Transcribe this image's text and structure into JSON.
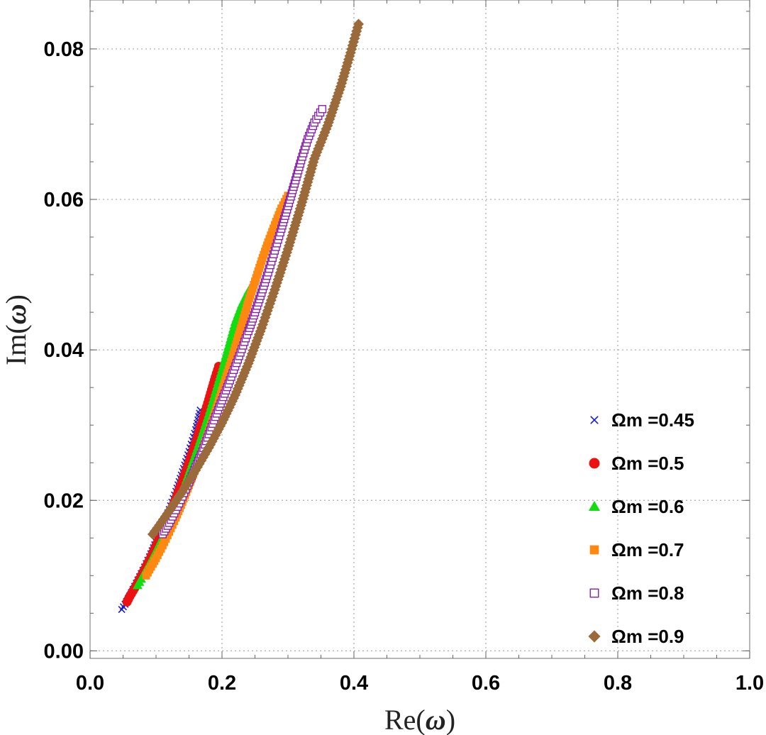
{
  "chart_data": {
    "type": "scatter",
    "title": "",
    "xlabel_prefix": "Re(",
    "xlabel_symbol": "ω",
    "xlabel_suffix": ")",
    "ylabel_prefix": "Im(",
    "ylabel_symbol": "ω",
    "ylabel_suffix": ")",
    "xlim": [
      0.0,
      1.0
    ],
    "ylim": [
      -0.001,
      0.0865
    ],
    "xticks": [
      0.0,
      0.2,
      0.4,
      0.6,
      0.8,
      1.0
    ],
    "xtick_labels": [
      "0.0",
      "0.2",
      "0.4",
      "0.6",
      "0.8",
      "1.0"
    ],
    "yticks": [
      0.0,
      0.02,
      0.04,
      0.06,
      0.08
    ],
    "ytick_labels": [
      "0.00",
      "0.02",
      "0.04",
      "0.06",
      "0.08"
    ],
    "grid": true,
    "legend_position": "bottom-right",
    "series": [
      {
        "name": "Ωm =0.45",
        "marker": "x",
        "color": "#1a1acc",
        "points": [
          [
            0.048,
            0.0055
          ],
          [
            0.053,
            0.0062
          ],
          [
            0.06,
            0.0073
          ],
          [
            0.07,
            0.009
          ],
          [
            0.08,
            0.0107
          ],
          [
            0.09,
            0.0125
          ],
          [
            0.1,
            0.0145
          ],
          [
            0.11,
            0.0166
          ],
          [
            0.12,
            0.0188
          ],
          [
            0.13,
            0.0212
          ],
          [
            0.14,
            0.0238
          ],
          [
            0.15,
            0.0265
          ],
          [
            0.16,
            0.0294
          ],
          [
            0.167,
            0.032
          ]
        ]
      },
      {
        "name": "Ωm =0.5",
        "marker": "circle",
        "color": "#ee1111",
        "points": [
          [
            0.056,
            0.0065
          ],
          [
            0.06,
            0.0072
          ],
          [
            0.07,
            0.0087
          ],
          [
            0.08,
            0.0104
          ],
          [
            0.09,
            0.0121
          ],
          [
            0.1,
            0.014
          ],
          [
            0.11,
            0.016
          ],
          [
            0.12,
            0.0181
          ],
          [
            0.13,
            0.0203
          ],
          [
            0.14,
            0.0226
          ],
          [
            0.15,
            0.0251
          ],
          [
            0.16,
            0.0277
          ],
          [
            0.17,
            0.0305
          ],
          [
            0.18,
            0.0334
          ],
          [
            0.19,
            0.0364
          ],
          [
            0.195,
            0.0378
          ]
        ]
      },
      {
        "name": "Ωm =0.6",
        "marker": "triangle",
        "color": "#11dd11",
        "points": [
          [
            0.072,
            0.0087
          ],
          [
            0.08,
            0.01
          ],
          [
            0.09,
            0.0116
          ],
          [
            0.1,
            0.0133
          ],
          [
            0.11,
            0.0151
          ],
          [
            0.12,
            0.017
          ],
          [
            0.13,
            0.0191
          ],
          [
            0.14,
            0.0213
          ],
          [
            0.15,
            0.0237
          ],
          [
            0.16,
            0.0262
          ],
          [
            0.17,
            0.0288
          ],
          [
            0.18,
            0.0315
          ],
          [
            0.19,
            0.0344
          ],
          [
            0.2,
            0.0374
          ],
          [
            0.21,
            0.0405
          ],
          [
            0.22,
            0.0437
          ],
          [
            0.23,
            0.046
          ],
          [
            0.24,
            0.0478
          ],
          [
            0.247,
            0.0488
          ]
        ]
      },
      {
        "name": "Ωm =0.7",
        "marker": "square",
        "color": "#ff8811",
        "points": [
          [
            0.085,
            0.01
          ],
          [
            0.09,
            0.0108
          ],
          [
            0.1,
            0.0123
          ],
          [
            0.11,
            0.014
          ],
          [
            0.12,
            0.0158
          ],
          [
            0.13,
            0.0177
          ],
          [
            0.14,
            0.0198
          ],
          [
            0.15,
            0.022
          ],
          [
            0.16,
            0.0243
          ],
          [
            0.17,
            0.0267
          ],
          [
            0.18,
            0.0292
          ],
          [
            0.19,
            0.0318
          ],
          [
            0.2,
            0.0346
          ],
          [
            0.21,
            0.0374
          ],
          [
            0.22,
            0.0403
          ],
          [
            0.23,
            0.0433
          ],
          [
            0.24,
            0.0464
          ],
          [
            0.25,
            0.0491
          ],
          [
            0.26,
            0.0518
          ],
          [
            0.27,
            0.0543
          ],
          [
            0.28,
            0.0566
          ],
          [
            0.29,
            0.0588
          ],
          [
            0.3,
            0.0605
          ]
        ]
      },
      {
        "name": "Ωm =0.8",
        "marker": "open-square",
        "color": "#8822aa",
        "points": [
          [
            0.11,
            0.0155
          ],
          [
            0.12,
            0.017
          ],
          [
            0.13,
            0.0187
          ],
          [
            0.14,
            0.0205
          ],
          [
            0.15,
            0.0224
          ],
          [
            0.16,
            0.0244
          ],
          [
            0.17,
            0.0265
          ],
          [
            0.18,
            0.0288
          ],
          [
            0.19,
            0.0311
          ],
          [
            0.2,
            0.0333
          ],
          [
            0.21,
            0.0355
          ],
          [
            0.22,
            0.0378
          ],
          [
            0.23,
            0.0401
          ],
          [
            0.24,
            0.0425
          ],
          [
            0.25,
            0.045
          ],
          [
            0.26,
            0.0476
          ],
          [
            0.27,
            0.0503
          ],
          [
            0.28,
            0.0532
          ],
          [
            0.29,
            0.0561
          ],
          [
            0.3,
            0.0591
          ],
          [
            0.31,
            0.0621
          ],
          [
            0.32,
            0.0652
          ],
          [
            0.33,
            0.068
          ],
          [
            0.34,
            0.0702
          ],
          [
            0.352,
            0.072
          ]
        ]
      },
      {
        "name": "Ωm =0.9",
        "marker": "diamond",
        "color": "#9b6a3a",
        "points": [
          [
            0.095,
            0.0155
          ],
          [
            0.105,
            0.0167
          ],
          [
            0.12,
            0.0186
          ],
          [
            0.14,
            0.0212
          ],
          [
            0.16,
            0.024
          ],
          [
            0.18,
            0.027
          ],
          [
            0.2,
            0.0303
          ],
          [
            0.22,
            0.034
          ],
          [
            0.24,
            0.0382
          ],
          [
            0.26,
            0.0429
          ],
          [
            0.28,
            0.048
          ],
          [
            0.3,
            0.0534
          ],
          [
            0.32,
            0.0592
          ],
          [
            0.34,
            0.0654
          ],
          [
            0.36,
            0.0698
          ],
          [
            0.38,
            0.075
          ],
          [
            0.395,
            0.0795
          ],
          [
            0.407,
            0.0833
          ]
        ]
      }
    ]
  }
}
